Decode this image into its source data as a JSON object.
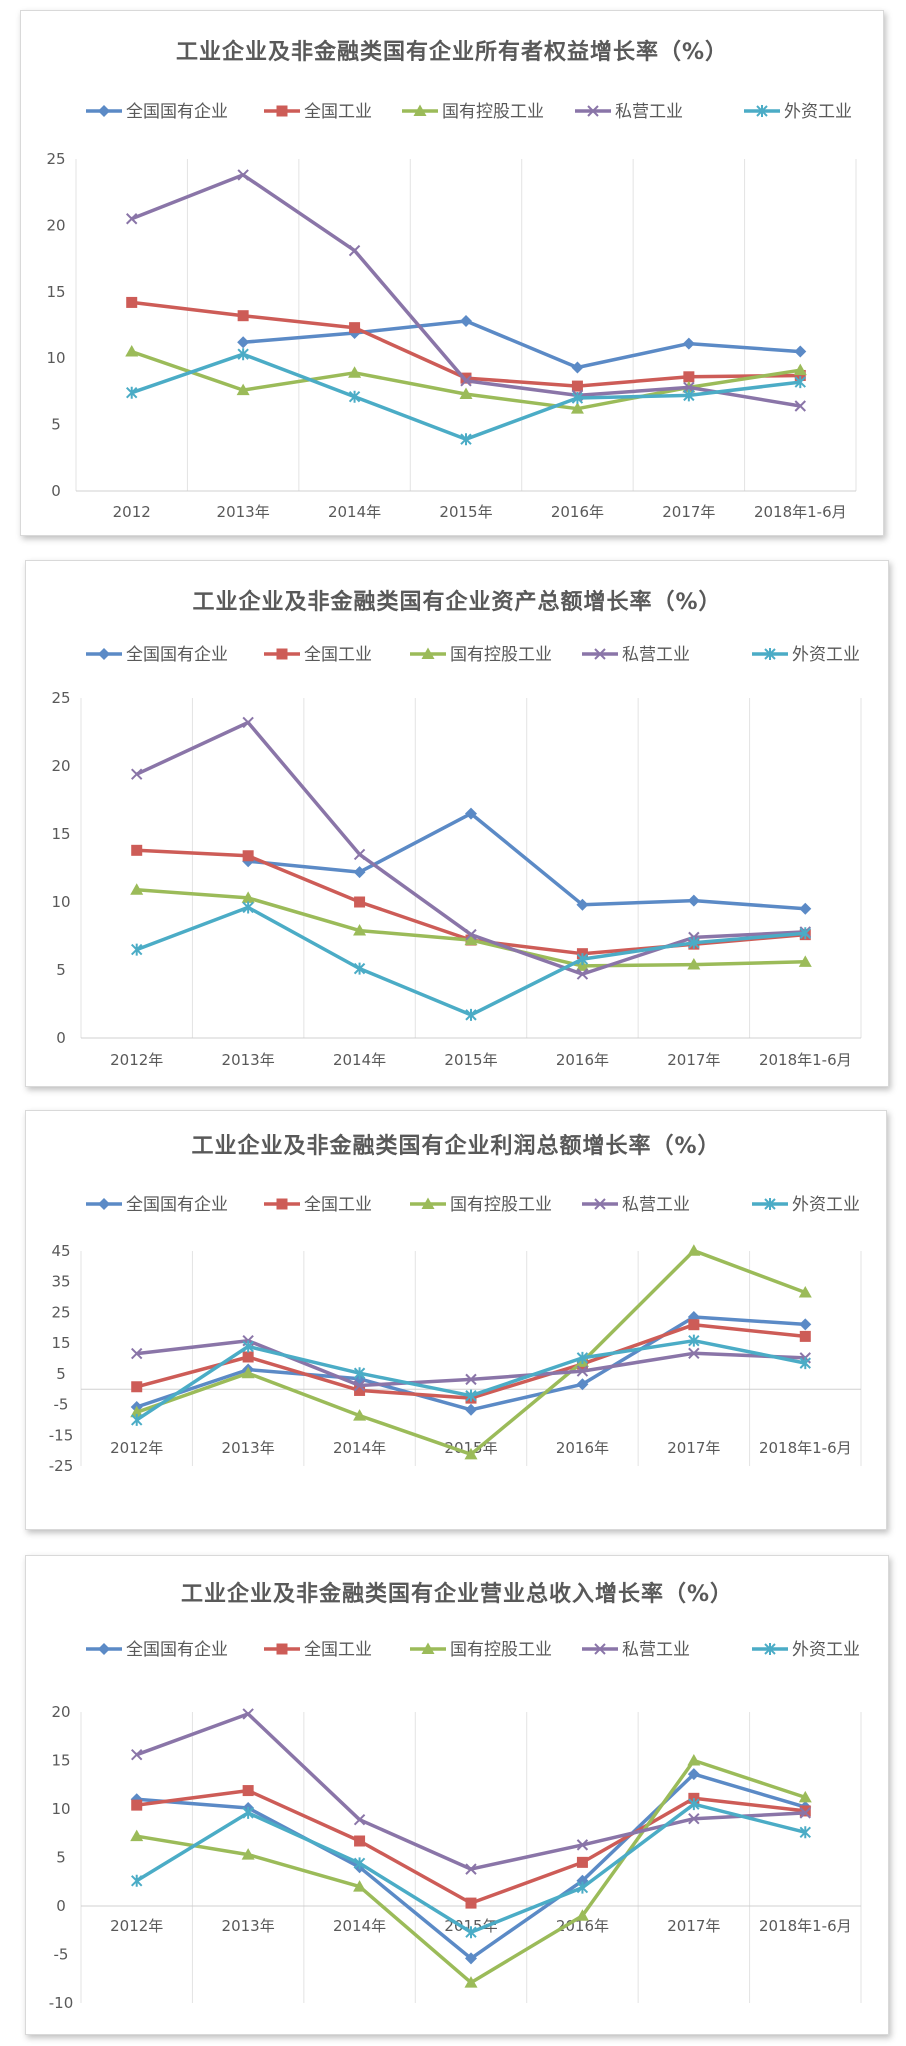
{
  "colors": {
    "state": "#5b8ac6",
    "national": "#cd5c57",
    "stateholding": "#9bbb59",
    "private": "#8a75a8",
    "foreign": "#4bacc6"
  },
  "legend": [
    {
      "key": "state",
      "name": "全国国有企业",
      "marker": "diamond"
    },
    {
      "key": "national",
      "name": "全国工业",
      "marker": "square"
    },
    {
      "key": "stateholding",
      "name": "国有控股工业",
      "marker": "triangle"
    },
    {
      "key": "private",
      "name": "私营工业",
      "marker": "x"
    },
    {
      "key": "foreign",
      "name": "外资工业",
      "marker": "star"
    }
  ],
  "chart_data": [
    {
      "type": "line",
      "title": "工业企业及非金融类国有企业所有者权益增长率（%）",
      "categories": [
        "2012",
        "2013年",
        "2014年",
        "2015年",
        "2016年",
        "2017年",
        "2018年1-6月"
      ],
      "ylim": [
        0,
        25
      ],
      "yticks": [
        0,
        5,
        10,
        15,
        20,
        25
      ],
      "grid": true,
      "legend_position": "top",
      "series": [
        {
          "key": "state",
          "name": "全国国有企业",
          "values": [
            null,
            11.2,
            11.9,
            12.8,
            9.3,
            11.1,
            10.5
          ]
        },
        {
          "key": "national",
          "name": "全国工业",
          "values": [
            14.2,
            13.2,
            12.3,
            8.5,
            7.9,
            8.6,
            8.7
          ]
        },
        {
          "key": "stateholding",
          "name": "国有控股工业",
          "values": [
            10.5,
            7.6,
            8.9,
            7.3,
            6.2,
            7.8,
            9.1
          ]
        },
        {
          "key": "private",
          "name": "私营工业",
          "values": [
            20.5,
            23.8,
            18.1,
            8.3,
            7.2,
            7.8,
            6.4
          ]
        },
        {
          "key": "foreign",
          "name": "外资工业",
          "values": [
            7.4,
            10.3,
            7.1,
            3.9,
            7.0,
            7.2,
            8.2
          ]
        }
      ]
    },
    {
      "type": "line",
      "title": "工业企业及非金融类国有企业资产总额增长率（%）",
      "categories": [
        "2012年",
        "2013年",
        "2014年",
        "2015年",
        "2016年",
        "2017年",
        "2018年1-6月"
      ],
      "ylim": [
        0,
        25
      ],
      "yticks": [
        0,
        5,
        10,
        15,
        20,
        25
      ],
      "grid": true,
      "legend_position": "top",
      "series": [
        {
          "key": "state",
          "name": "全国国有企业",
          "values": [
            null,
            13.0,
            12.2,
            16.5,
            9.8,
            10.1,
            9.5
          ]
        },
        {
          "key": "national",
          "name": "全国工业",
          "values": [
            13.8,
            13.4,
            10.0,
            7.2,
            6.2,
            6.9,
            7.6
          ]
        },
        {
          "key": "stateholding",
          "name": "国有控股工业",
          "values": [
            10.9,
            10.3,
            7.9,
            7.2,
            5.3,
            5.4,
            5.6
          ]
        },
        {
          "key": "private",
          "name": "私营工业",
          "values": [
            19.4,
            23.2,
            13.5,
            7.6,
            4.7,
            7.4,
            7.8
          ]
        },
        {
          "key": "foreign",
          "name": "外资工业",
          "values": [
            6.5,
            9.6,
            5.1,
            1.7,
            5.8,
            7.0,
            7.7
          ]
        }
      ]
    },
    {
      "type": "line",
      "title": "工业企业及非金融类国有企业利润总额增长率（%）",
      "categories": [
        "2012年",
        "2013年",
        "2014年",
        "2015年",
        "2016年",
        "2017年",
        "2018年1-6月"
      ],
      "ylim": [
        -25,
        45
      ],
      "yticks": [
        -25,
        -15,
        -5,
        5,
        15,
        25,
        35,
        45
      ],
      "grid": true,
      "legend_position": "top",
      "series": [
        {
          "key": "state",
          "name": "全国国有企业",
          "values": [
            -5.8,
            6.4,
            3.4,
            -6.7,
            1.6,
            23.5,
            21.1
          ]
        },
        {
          "key": "national",
          "name": "全国工业",
          "values": [
            0.8,
            10.5,
            -0.4,
            -2.9,
            8.2,
            21.0,
            17.2
          ]
        },
        {
          "key": "stateholding",
          "name": "国有控股工业",
          "values": [
            -7.5,
            5.2,
            -8.6,
            -21.2,
            8.9,
            45.1,
            31.5
          ]
        },
        {
          "key": "private",
          "name": "私营工业",
          "values": [
            11.6,
            15.8,
            1.2,
            3.2,
            5.9,
            11.7,
            10.2
          ]
        },
        {
          "key": "foreign",
          "name": "外资工业",
          "values": [
            -10.0,
            13.9,
            5.2,
            -2.1,
            10.2,
            15.8,
            8.5
          ]
        }
      ]
    },
    {
      "type": "line",
      "title": "工业企业及非金融类国有企业营业总收入增长率（%）",
      "categories": [
        "2012年",
        "2013年",
        "2014年",
        "2015年",
        "2016年",
        "2017年",
        "2018年1-6月"
      ],
      "ylim": [
        -10,
        20
      ],
      "yticks": [
        -10,
        -5,
        0,
        5,
        10,
        15,
        20
      ],
      "grid": true,
      "legend_position": "top",
      "series": [
        {
          "key": "state",
          "name": "全国国有企业",
          "values": [
            11.0,
            10.1,
            4.0,
            -5.4,
            2.6,
            13.6,
            10.2
          ]
        },
        {
          "key": "national",
          "name": "全国工业",
          "values": [
            10.4,
            11.9,
            6.7,
            0.3,
            4.5,
            11.1,
            9.8
          ]
        },
        {
          "key": "stateholding",
          "name": "国有控股工业",
          "values": [
            7.2,
            5.3,
            2.0,
            -7.9,
            -1.0,
            15.0,
            11.2
          ]
        },
        {
          "key": "private",
          "name": "私营工业",
          "values": [
            15.6,
            19.8,
            8.9,
            3.8,
            6.3,
            9.0,
            9.6
          ]
        },
        {
          "key": "foreign",
          "name": "外资工业",
          "values": [
            2.6,
            9.6,
            4.4,
            -2.7,
            1.9,
            10.5,
            7.6
          ]
        }
      ]
    }
  ]
}
